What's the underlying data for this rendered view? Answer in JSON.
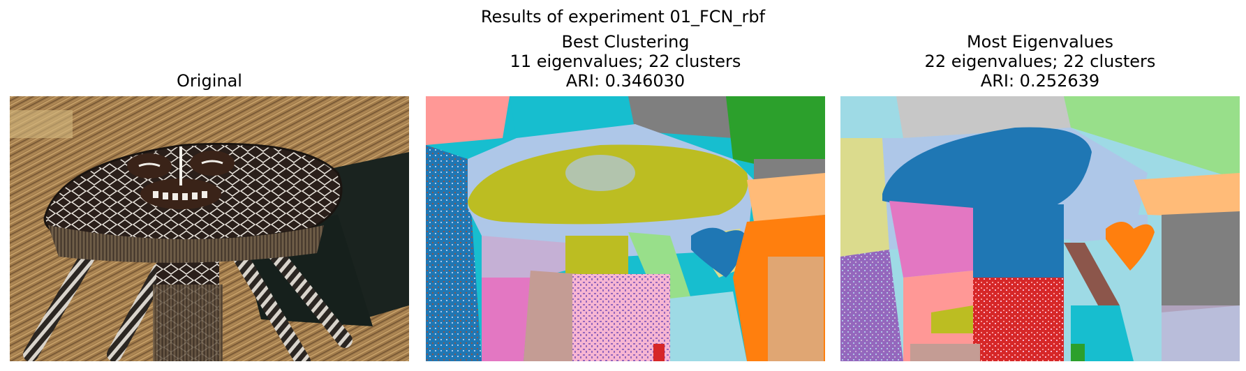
{
  "figure": {
    "title": "Results of experiment 01_FCN_rbf"
  },
  "panels": [
    {
      "lines": [
        "Original"
      ],
      "image": "photograph of a ceremonial mask with white geometric pattern on a straw thatch background"
    },
    {
      "lines": [
        "Best Clustering",
        "11 eigenvalues; 22 clusters",
        "ARI: 0.346030"
      ],
      "image": "segmentation map in 22 flat color clusters"
    },
    {
      "lines": [
        "Most Eigenvalues",
        "22 eigenvalues; 22 clusters",
        "ARI: 0.252639"
      ],
      "image": "segmentation map in 22 flat color clusters"
    }
  ],
  "palette": {
    "blue": "#1f77b4",
    "light_blue": "#aec7e8",
    "orange": "#ff7f0e",
    "light_orange": "#ffbb78",
    "green": "#2ca02c",
    "light_green": "#98df8a",
    "red": "#d62728",
    "pink_light": "#ff9896",
    "purple": "#9467bd",
    "lavender": "#c5b0d5",
    "brown": "#8c564b",
    "tan": "#c49c94",
    "pink": "#e377c2",
    "light_pink": "#f7b6d2",
    "gray": "#7f7f7f",
    "light_gray": "#c7c7c7",
    "olive": "#bcbd22",
    "light_olive": "#dbdb8d",
    "cyan": "#17becf",
    "light_cyan": "#9edae5"
  }
}
